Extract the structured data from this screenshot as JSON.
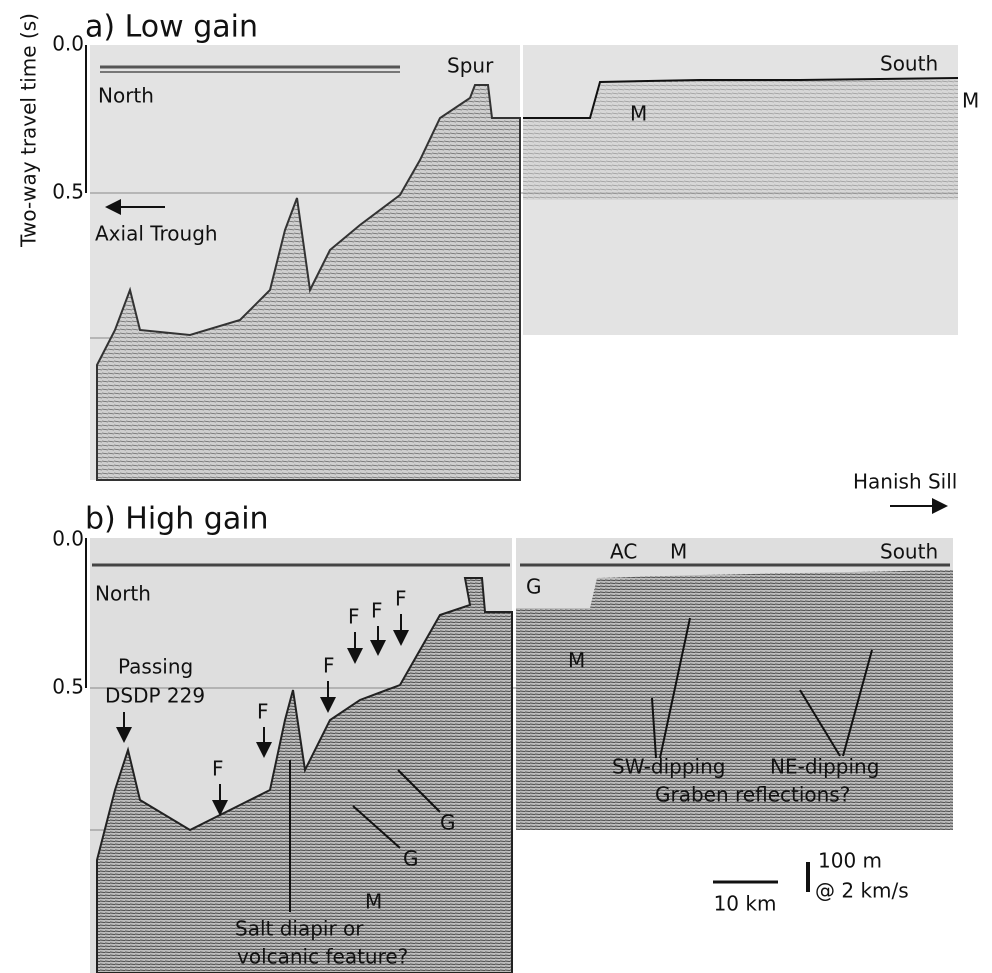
{
  "y_axis_label": "Two-way travel time (s)",
  "panel_a": {
    "title": "a) Low gain",
    "ticks": [
      "0.0",
      "0.5"
    ],
    "labels": [
      "North",
      "Spur",
      "South",
      "M",
      "M",
      "Axial Trough"
    ]
  },
  "hanish_sill": "Hanish Sill",
  "panel_b": {
    "title": "b) High gain",
    "ticks": [
      "0.0",
      "0.5"
    ],
    "labels": [
      "North",
      "AC",
      "M",
      "South",
      "G",
      "M",
      "Passing",
      "DSDP 229",
      "F",
      "F",
      "F",
      "F",
      "F",
      "F",
      "G",
      "G",
      "M",
      "Salt diapir or",
      "volcanic feature?",
      "SW-dipping",
      "NE-dipping",
      "Graben reflections?"
    ]
  },
  "scale": {
    "length": "10 km",
    "height": "100 m",
    "velocity": "@ 2 km/s"
  }
}
